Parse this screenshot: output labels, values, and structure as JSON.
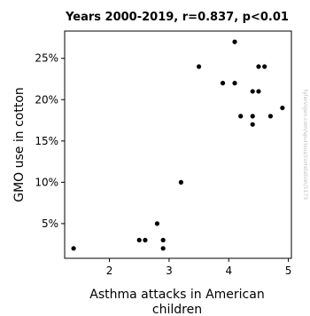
{
  "chart_data": {
    "type": "scatter",
    "title": "Years 2000-2019, r=0.837, p<0.01",
    "xlabel_lines": [
      "Asthma attacks in American",
      "children"
    ],
    "ylabel": "GMO use in cotton",
    "xlim": [
      1.25,
      5.05
    ],
    "ylim": [
      0.8,
      28.3
    ],
    "x_ticks": [
      2,
      3,
      4,
      5
    ],
    "y_ticks": [
      5,
      10,
      15,
      20,
      25
    ],
    "y_tick_labels": [
      "5%",
      "10%",
      "15%",
      "20%",
      "25%"
    ],
    "grid": false,
    "point_color": "#000000",
    "points": [
      {
        "x": 1.4,
        "y": 2
      },
      {
        "x": 2.5,
        "y": 3
      },
      {
        "x": 2.6,
        "y": 3
      },
      {
        "x": 2.8,
        "y": 5
      },
      {
        "x": 2.9,
        "y": 3
      },
      {
        "x": 2.9,
        "y": 2
      },
      {
        "x": 3.2,
        "y": 10
      },
      {
        "x": 3.5,
        "y": 24
      },
      {
        "x": 3.9,
        "y": 22
      },
      {
        "x": 4.1,
        "y": 27
      },
      {
        "x": 4.1,
        "y": 22
      },
      {
        "x": 4.2,
        "y": 18
      },
      {
        "x": 4.4,
        "y": 21
      },
      {
        "x": 4.4,
        "y": 18
      },
      {
        "x": 4.4,
        "y": 17
      },
      {
        "x": 4.5,
        "y": 24
      },
      {
        "x": 4.5,
        "y": 21
      },
      {
        "x": 4.6,
        "y": 24
      },
      {
        "x": 4.7,
        "y": 18
      },
      {
        "x": 4.9,
        "y": 19
      }
    ]
  },
  "watermark": "tylervigen.com/spurious/correlation/1173"
}
